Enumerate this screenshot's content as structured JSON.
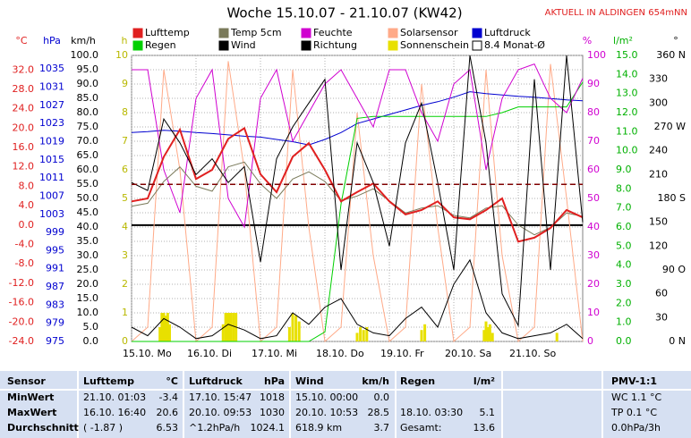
{
  "chart_data": {
    "type": "line",
    "title": "Woche 15.10.07 - 21.10.07 (KW42)",
    "notice": "AKTUELL IN ALDINGEN 654mNN",
    "x": [
      0,
      0.25,
      0.5,
      0.75,
      1,
      1.25,
      1.5,
      1.75,
      2,
      2.25,
      2.5,
      2.75,
      3,
      3.25,
      3.5,
      3.75,
      4,
      4.25,
      4.5,
      4.75,
      5,
      5.25,
      5.5,
      5.75,
      6,
      6.25,
      6.5,
      6.75,
      7
    ],
    "xlim": [
      0,
      7
    ],
    "xticks": [
      {
        "value": 0,
        "label": "15.10. Mo"
      },
      {
        "value": 1,
        "label": "16.10. Di"
      },
      {
        "value": 2,
        "label": "17.10. Mi"
      },
      {
        "value": 3,
        "label": "18.10. Do"
      },
      {
        "value": 4,
        "label": "19.10. Fr"
      },
      {
        "value": 5,
        "label": "20.10. Sa"
      },
      {
        "value": 6,
        "label": "21.10. So"
      }
    ],
    "axes": [
      {
        "unit": "°C",
        "color": "#e02020",
        "lim": [
          -24,
          35
        ],
        "zero_line": true,
        "ticks": [
          {
            "value": 32,
            "label": "32.0"
          },
          {
            "value": 28,
            "label": "28.0"
          },
          {
            "value": 24,
            "label": "24.0"
          },
          {
            "value": 20,
            "label": "20.0"
          },
          {
            "value": 16,
            "label": "16.0"
          },
          {
            "value": 12,
            "label": "12.0"
          },
          {
            "value": 8,
            "label": "8.0"
          },
          {
            "value": 4,
            "label": "4.0"
          },
          {
            "value": 0,
            "label": "0.0"
          },
          {
            "value": -4,
            "label": "-4.0"
          },
          {
            "value": -8,
            "label": "-8.0"
          },
          {
            "value": -12,
            "label": "-12.0"
          },
          {
            "value": -16,
            "label": "-16.0"
          },
          {
            "value": -20,
            "label": "-20.0"
          },
          {
            "value": -24,
            "label": "-24.0"
          }
        ]
      },
      {
        "unit": "hPa",
        "color": "#0000d0",
        "lim": [
          975,
          1038
        ],
        "ticks": [
          1035,
          1031,
          1027,
          1023,
          1019,
          1015,
          1011,
          1007,
          1003,
          999,
          995,
          991,
          987,
          983,
          979,
          975
        ]
      },
      {
        "unit": "km/h",
        "color": "#000000",
        "lim": [
          0,
          100
        ],
        "grid": true,
        "ticks": [
          {
            "value": 100,
            "label": "100.0"
          },
          {
            "value": 95,
            "label": "95.0"
          },
          {
            "value": 90,
            "label": "90.0"
          },
          {
            "value": 85,
            "label": "85.0"
          },
          {
            "value": 80,
            "label": "80.0"
          },
          {
            "value": 75,
            "label": "75.0"
          },
          {
            "value": 70,
            "label": "70.0"
          },
          {
            "value": 65,
            "label": "65.0"
          },
          {
            "value": 60,
            "label": "60.0"
          },
          {
            "value": 55,
            "label": "55.0"
          },
          {
            "value": 50,
            "label": "50.0"
          },
          {
            "value": 45,
            "label": "45.0"
          },
          {
            "value": 40,
            "label": "40.0"
          },
          {
            "value": 35,
            "label": "35.0"
          },
          {
            "value": 30,
            "label": "30.0"
          },
          {
            "value": 25,
            "label": "25.0"
          },
          {
            "value": 20,
            "label": "20.0"
          },
          {
            "value": 15,
            "label": "15.0"
          },
          {
            "value": 10,
            "label": "10.0"
          },
          {
            "value": 5,
            "label": "5.0"
          },
          {
            "value": 0,
            "label": "0.0"
          }
        ]
      },
      {
        "unit": "h",
        "color": "#b8b800",
        "lim": [
          0,
          10
        ],
        "ticks": [
          10,
          9,
          8,
          7,
          6,
          5,
          4,
          3,
          2,
          1,
          0
        ]
      },
      {
        "unit": "%",
        "color": "#d000d0",
        "lim": [
          0,
          100
        ],
        "ticks": [
          100,
          90,
          80,
          70,
          60,
          50,
          40,
          30,
          20,
          10,
          0
        ]
      },
      {
        "unit": "l/m²",
        "color": "#00b000",
        "lim": [
          0,
          15
        ],
        "ticks": [
          {
            "value": 15,
            "label": "15.0"
          },
          {
            "value": 14,
            "label": "14.0"
          },
          {
            "value": 13,
            "label": "13.0"
          },
          {
            "value": 12,
            "label": "12.0"
          },
          {
            "value": 11,
            "label": "11.0"
          },
          {
            "value": 10,
            "label": "10.0"
          },
          {
            "value": 9,
            "label": "9.0"
          },
          {
            "value": 8,
            "label": "8.0"
          },
          {
            "value": 7,
            "label": "7.0"
          },
          {
            "value": 6,
            "label": "6.0"
          },
          {
            "value": 5,
            "label": "5.0"
          },
          {
            "value": 4,
            "label": "4.0"
          },
          {
            "value": 3,
            "label": "3.0"
          },
          {
            "value": 2,
            "label": "2.0"
          },
          {
            "value": 1,
            "label": "1.0"
          },
          {
            "value": 0,
            "label": "0.0"
          }
        ]
      },
      {
        "unit": "°",
        "color": "#000000",
        "lim": [
          0,
          360
        ],
        "ticks": [
          {
            "value": 360,
            "label": "360 N"
          },
          330,
          300,
          {
            "value": 270,
            "label": "270 W"
          },
          240,
          210,
          {
            "value": 180,
            "label": "180 S"
          },
          150,
          120,
          {
            "value": 90,
            "label": "90 O"
          },
          60,
          30,
          {
            "value": 0,
            "label": "0 N"
          }
        ]
      }
    ],
    "series": [
      {
        "name": "Lufttemp",
        "color": "#e02020",
        "axis": 0,
        "width": 2,
        "values": [
          4.9,
          5.5,
          14.1,
          19.7,
          9.5,
          11.4,
          17.8,
          20.0,
          10.5,
          6.8,
          14.1,
          16.9,
          11.4,
          4.9,
          6.8,
          8.6,
          4.9,
          2.2,
          3.1,
          4.9,
          1.6,
          1.2,
          3.1,
          5.5,
          -3.4,
          -2.6,
          -0.6,
          3.1,
          1.6
        ]
      },
      {
        "name": "Temp 5cm",
        "color": "#7a7a5a",
        "axis": 0,
        "width": 1,
        "values": [
          3.9,
          4.5,
          9,
          12,
          8,
          7,
          12,
          13,
          8.5,
          5.5,
          9.5,
          11,
          9,
          5,
          6,
          7.5,
          5,
          2.5,
          3.5,
          4,
          2,
          1.5,
          3.5,
          4,
          0,
          -2,
          -0.5,
          2.5,
          1.8
        ]
      },
      {
        "name": "Feuchte",
        "color": "#d000d0",
        "axis": 4,
        "width": 1,
        "values": [
          95,
          95,
          60,
          45,
          85,
          95,
          50,
          40,
          85,
          95,
          70,
          80,
          90,
          95,
          85,
          75,
          95,
          95,
          80,
          70,
          90,
          95,
          60,
          85,
          95,
          97,
          85,
          80,
          92
        ]
      },
      {
        "name": "Solarsensor",
        "color": "#ffaa88",
        "axis": 4,
        "width": 1,
        "values": [
          0,
          5,
          95,
          60,
          0,
          5,
          98,
          60,
          0,
          5,
          95,
          40,
          0,
          5,
          80,
          30,
          0,
          5,
          90,
          40,
          0,
          5,
          95,
          30,
          0,
          5,
          97,
          50,
          0
        ]
      },
      {
        "name": "Luftdruck",
        "color": "#0000d0",
        "axis": 1,
        "width": 1,
        "values": [
          1021,
          1021.2,
          1021.5,
          1021.3,
          1021,
          1020.8,
          1020.5,
          1020.2,
          1020,
          1019.5,
          1019,
          1018.3,
          1019.5,
          1021,
          1023,
          1024,
          1025,
          1026,
          1027,
          1027.8,
          1028.8,
          1030,
          1029.6,
          1029.3,
          1029,
          1028.8,
          1028.5,
          1028.2,
          1028
        ]
      },
      {
        "name": "Regen",
        "color": "#00d000",
        "axis": 5,
        "width": 1,
        "values": [
          0,
          0,
          0,
          0,
          0,
          0,
          0,
          0,
          0,
          0,
          0,
          0,
          0.5,
          7.2,
          11.7,
          11.8,
          11.8,
          11.8,
          11.8,
          11.8,
          11.8,
          11.8,
          11.8,
          12,
          12.3,
          12.3,
          12.3,
          12.3,
          13.6
        ]
      },
      {
        "name": "Wind",
        "color": "#000000",
        "axis": 2,
        "width": 1,
        "values": [
          5,
          2,
          8,
          5,
          1,
          2,
          6,
          4,
          1,
          2,
          10,
          6,
          12,
          15,
          6,
          3,
          2,
          8,
          12,
          5,
          20,
          28.5,
          10,
          3,
          1,
          2,
          3,
          6,
          1
        ]
      },
      {
        "name": "Richtung",
        "color": "#000000",
        "axis": 6,
        "width": 1,
        "values": [
          200,
          190,
          280,
          250,
          210,
          230,
          200,
          220,
          100,
          230,
          270,
          300,
          330,
          90,
          250,
          200,
          120,
          250,
          300,
          200,
          90,
          360,
          250,
          60,
          20,
          330,
          90,
          360,
          150
        ]
      },
      {
        "name": "Sonnenschein",
        "color": "#e8e000",
        "axis": 3,
        "type": "bar",
        "x": [
          0.44,
          0.47,
          0.5,
          0.53,
          0.56,
          0.59,
          1.42,
          1.46,
          1.5,
          1.54,
          1.58,
          1.62,
          2.45,
          2.5,
          2.55,
          2.6,
          3.5,
          3.55,
          3.6,
          3.65,
          4.5,
          4.55,
          5.47,
          5.5,
          5.53,
          5.56,
          5.6,
          6.6
        ],
        "values": [
          0.5,
          1,
          1,
          0.9,
          1,
          0.6,
          0.6,
          1,
          1,
          1,
          1,
          1,
          0.5,
          1,
          0.9,
          0.7,
          0.3,
          0.5,
          0.4,
          0.5,
          0.4,
          0.6,
          0.4,
          0.7,
          0.5,
          0.6,
          0.3,
          0.3
        ]
      },
      {
        "name": "8.4 Monat-Ø",
        "color": "#800000",
        "axis": 0,
        "type": "hline",
        "dash": true,
        "value": 8.4
      }
    ]
  },
  "table": {
    "header": [
      "Sensor",
      "Lufttemp",
      "°C",
      "Luftdruck",
      "hPa",
      "Wind",
      "km/h",
      "Regen",
      "l/m²",
      "PMV-1:1"
    ],
    "rows": [
      [
        "MinWert",
        "21.10. 01:03",
        "-3.4",
        "17.10. 15:47",
        "1018",
        "15.10. 00:00",
        "0.0",
        null,
        null,
        "WC 1.1 °C"
      ],
      [
        "MaxWert",
        "16.10. 16:40",
        "20.6",
        "20.10. 09:53",
        "1030",
        "20.10. 10:53",
        "28.5",
        "18.10. 03:30",
        "5.1",
        "TP 0.1 °C"
      ],
      [
        "Durchschnitt",
        "( -1.87 )",
        "6.53",
        "^1.2hPa/h",
        "1024.1",
        "618.9 km",
        "3.7",
        "Gesamt:",
        "13.6",
        "0.0hPa/3h"
      ]
    ]
  }
}
